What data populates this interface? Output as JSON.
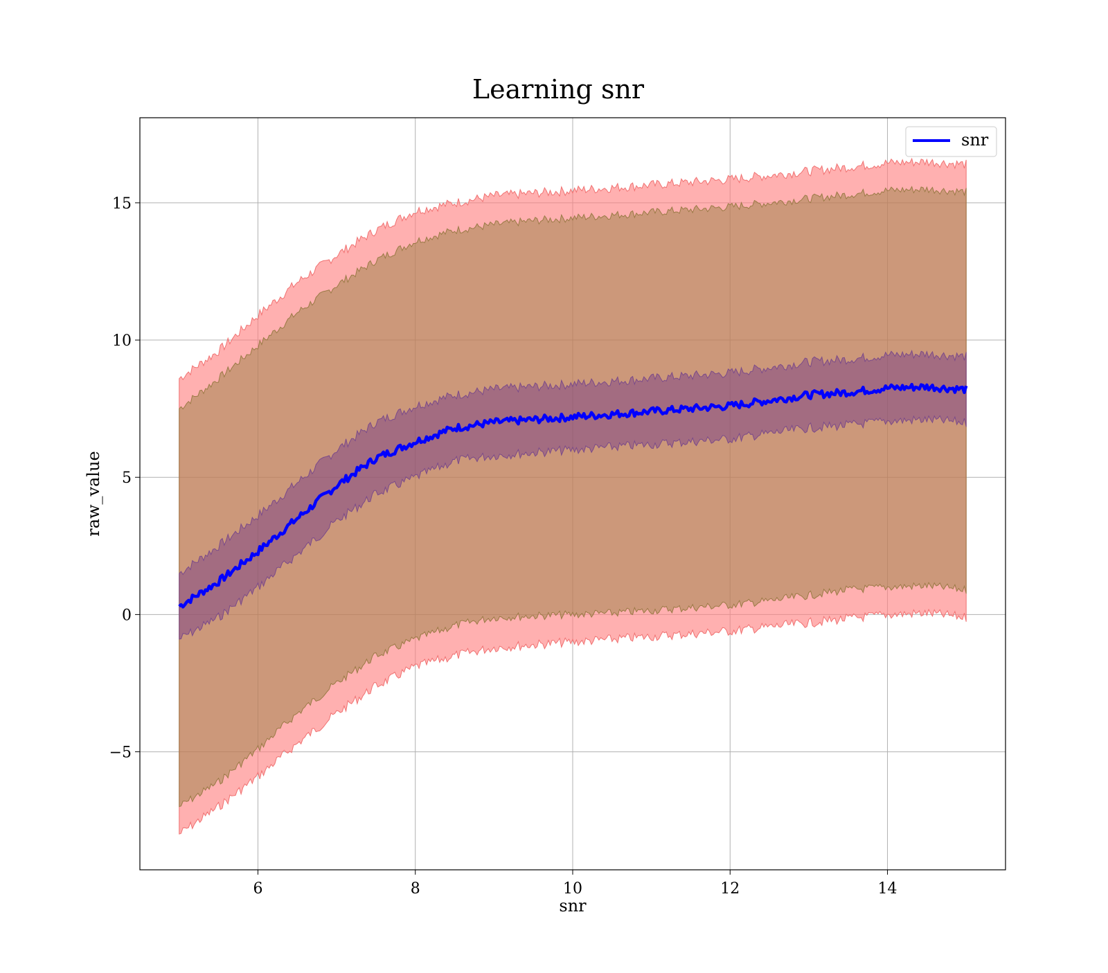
{
  "chart_data": {
    "type": "area",
    "title": "Learning snr",
    "xlabel": "snr",
    "ylabel": "raw_value",
    "xlim": [
      4.5,
      15.5
    ],
    "ylim": [
      -9.3,
      18.1
    ],
    "x_ticks": [
      6,
      8,
      10,
      12,
      14
    ],
    "x_tick_labels": [
      "6",
      "8",
      "10",
      "12",
      "14"
    ],
    "y_ticks": [
      -5,
      0,
      5,
      10,
      15
    ],
    "y_tick_labels": [
      "−5",
      "0",
      "5",
      "10",
      "15"
    ],
    "grid": true,
    "legend": {
      "position": "top-right",
      "entries": [
        "snr"
      ]
    },
    "colors": {
      "line": "#0000ff",
      "outer_band": "#ff8080",
      "middle_band": "#8f7c3a",
      "inner_band": "#6b2f8a",
      "grid": "#b0b0b0"
    },
    "x": [
      5.0,
      5.5,
      6.0,
      6.5,
      7.0,
      7.5,
      8.0,
      8.5,
      9.0,
      9.5,
      10.0,
      10.5,
      11.0,
      11.5,
      12.0,
      12.5,
      13.0,
      13.5,
      14.0,
      14.5,
      15.0
    ],
    "series": [
      {
        "name": "snr",
        "role": "mean",
        "values": [
          0.3,
          1.2,
          2.3,
          3.5,
          4.7,
          5.7,
          6.3,
          6.8,
          7.0,
          7.1,
          7.2,
          7.3,
          7.4,
          7.5,
          7.6,
          7.8,
          8.0,
          8.1,
          8.25,
          8.3,
          8.2
        ]
      },
      {
        "role": "inner_band",
        "upper": [
          1.5,
          2.5,
          3.6,
          4.8,
          6.0,
          7.0,
          7.6,
          8.0,
          8.2,
          8.3,
          8.4,
          8.5,
          8.6,
          8.7,
          8.8,
          9.0,
          9.2,
          9.3,
          9.45,
          9.5,
          9.4
        ],
        "lower": [
          -0.9,
          -0.1,
          1.0,
          2.2,
          3.4,
          4.4,
          5.0,
          5.6,
          5.8,
          5.9,
          6.0,
          6.1,
          6.2,
          6.3,
          6.4,
          6.6,
          6.8,
          6.9,
          7.05,
          7.1,
          7.0
        ]
      },
      {
        "role": "middle_band",
        "upper": [
          7.5,
          8.6,
          9.8,
          11.0,
          12.0,
          12.9,
          13.6,
          14.0,
          14.2,
          14.35,
          14.45,
          14.55,
          14.65,
          14.75,
          14.85,
          15.0,
          15.15,
          15.3,
          15.45,
          15.5,
          15.4
        ],
        "lower": [
          -7.0,
          -6.1,
          -4.9,
          -3.6,
          -2.5,
          -1.5,
          -0.9,
          -0.4,
          -0.1,
          -0.05,
          0.0,
          0.05,
          0.15,
          0.25,
          0.35,
          0.5,
          0.7,
          0.9,
          1.0,
          1.05,
          0.9
        ]
      },
      {
        "role": "outer_band",
        "upper": [
          8.6,
          9.6,
          10.9,
          12.1,
          13.1,
          14.0,
          14.7,
          15.0,
          15.25,
          15.35,
          15.45,
          15.55,
          15.65,
          15.75,
          15.85,
          16.0,
          16.15,
          16.3,
          16.45,
          16.5,
          16.4
        ],
        "lower": [
          -8.0,
          -7.0,
          -5.9,
          -4.7,
          -3.6,
          -2.6,
          -1.9,
          -1.5,
          -1.2,
          -1.1,
          -1.0,
          -0.9,
          -0.8,
          -0.7,
          -0.6,
          -0.45,
          -0.3,
          -0.15,
          0.0,
          0.05,
          -0.1
        ]
      }
    ]
  }
}
